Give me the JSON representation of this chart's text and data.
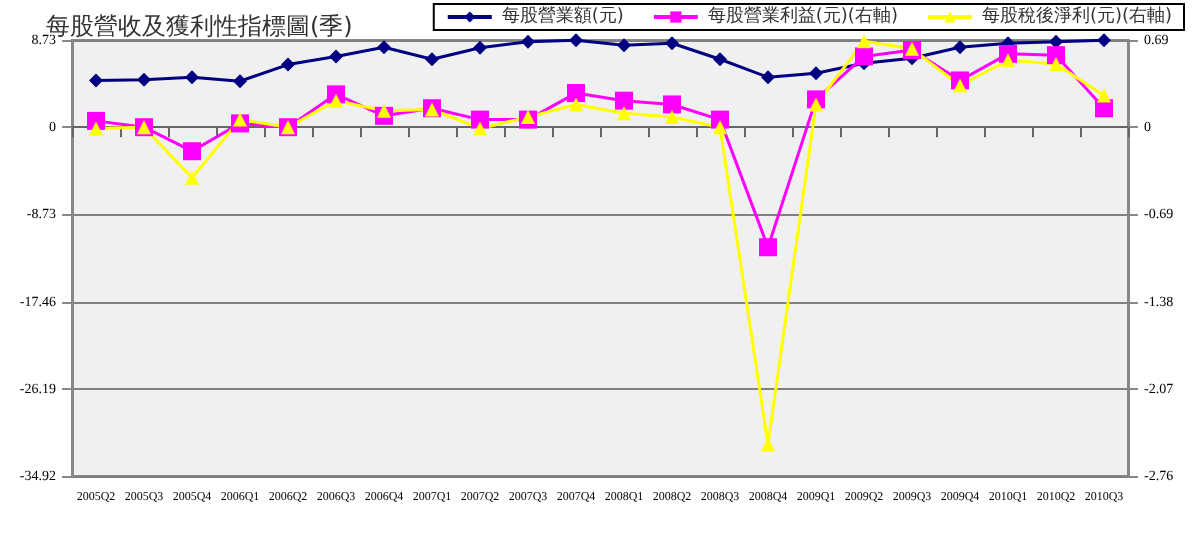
{
  "chart_data": {
    "type": "line",
    "title": "每股營收及獲利性指標圖(季)",
    "categories": [
      "2005Q2",
      "2005Q3",
      "2005Q4",
      "2006Q1",
      "2006Q2",
      "2006Q3",
      "2006Q4",
      "2007Q1",
      "2007Q2",
      "2007Q3",
      "2007Q4",
      "2008Q1",
      "2008Q2",
      "2008Q3",
      "2008Q4",
      "2009Q1",
      "2009Q2",
      "2009Q3",
      "2009Q4",
      "2010Q1",
      "2010Q2",
      "2010Q3"
    ],
    "series": [
      {
        "name": "每股營業額(元)",
        "color": "#000080",
        "marker": "diamond",
        "values": [
          4.67,
          4.75,
          5.0,
          4.6,
          6.27,
          7.07,
          8.0,
          6.8,
          7.95,
          8.55,
          8.7,
          8.2,
          8.4,
          6.8,
          5.0,
          5.4,
          6.4,
          6.9,
          8.0,
          8.4,
          8.55,
          8.7
        ]
      },
      {
        "name": "每股營業利益(元)(右軸)",
        "color": "#ff00ff",
        "marker": "square",
        "axis": "y2",
        "values": [
          0.05,
          0.0,
          -0.19,
          0.03,
          0.0,
          0.26,
          0.09,
          0.15,
          0.06,
          0.06,
          0.27,
          0.21,
          0.18,
          0.06,
          -0.95,
          0.22,
          0.56,
          0.61,
          0.37,
          0.58,
          0.57,
          0.15
        ]
      },
      {
        "name": "每股稅後淨利(元)(右軸)",
        "color": "#ffff00",
        "marker": "triangle",
        "axis": "y2",
        "values": [
          -0.01,
          0.0,
          -0.4,
          0.06,
          0.0,
          0.21,
          0.13,
          0.14,
          -0.01,
          0.08,
          0.18,
          0.11,
          0.08,
          0.0,
          -2.51,
          0.18,
          0.68,
          0.62,
          0.33,
          0.53,
          0.5,
          0.25
        ]
      }
    ],
    "ylim": [
      -34.92,
      8.73
    ],
    "yticks": [
      -34.92,
      -26.19,
      -17.46,
      -8.73,
      0,
      8.73
    ],
    "y2lim": [
      -2.76,
      0.69
    ],
    "y2ticks": [
      -2.76,
      -2.07,
      -1.38,
      -0.69,
      0,
      0.69
    ],
    "grid": "y",
    "legend": "top right",
    "line_style": "solid"
  }
}
